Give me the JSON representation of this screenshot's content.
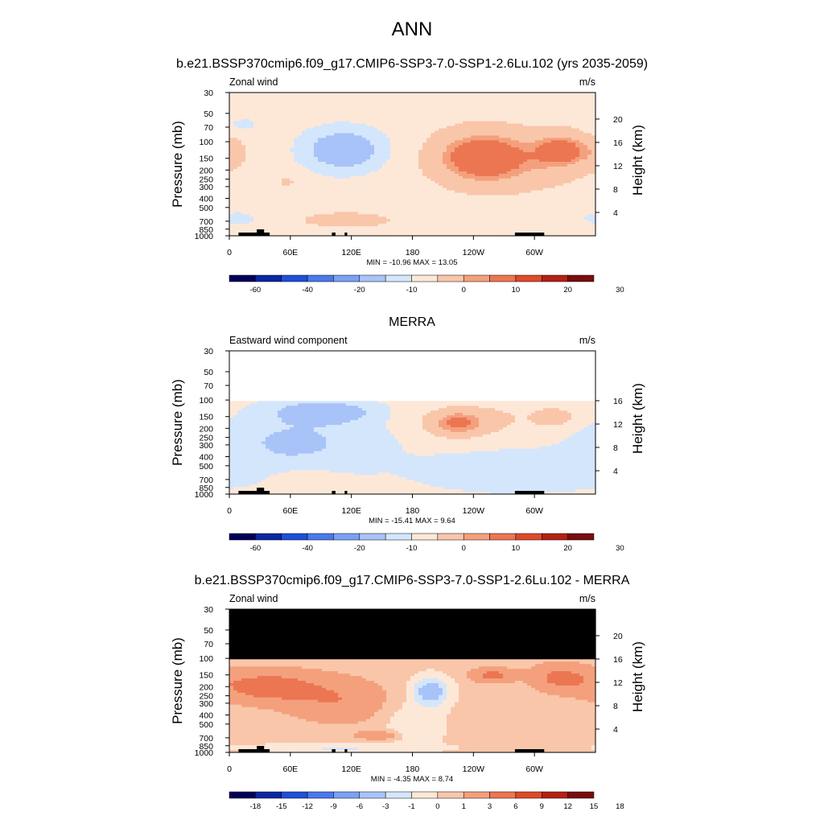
{
  "main_title": "ANN",
  "colors": {
    "full": [
      "#00005a",
      "#0a27a3",
      "#1f4fd8",
      "#4a79ec",
      "#7aa1f3",
      "#a8c3f8",
      "#d4e6fb",
      "#fde8d8",
      "#f9c6aa",
      "#f4a07d",
      "#ec7652",
      "#de4a2a",
      "#b42114",
      "#7a0d0d"
    ],
    "blank": "#ffffff",
    "masked": "#000000",
    "terrain": "#000000"
  },
  "chart_data": [
    {
      "type": "heatmap",
      "title": "b.e21.BSSP370cmip6.f09_g17.CMIP6-SSP3-7.0-SSP1-2.6Lu.102 (yrs 2035-2059)",
      "left_label": "Zonal wind",
      "right_label": "m/s",
      "ylabel": "Pressure (mb)",
      "ylabel_right": "Height (km)",
      "pressure_ticks": [
        "30",
        "50",
        "70",
        "100",
        "150",
        "200",
        "250",
        "300",
        "400",
        "500",
        "700",
        "850",
        "1000"
      ],
      "height_ticks": [
        "4",
        "8",
        "12",
        "16",
        "20"
      ],
      "lon_ticks": [
        "0",
        "60E",
        "120E",
        "180",
        "120W",
        "60W"
      ],
      "minmax": "MIN = -10.96  MAX =  13.05",
      "colorbar_labels": [
        "-60",
        "-40",
        "-20",
        "-10",
        "0",
        "10",
        "20",
        "30"
      ],
      "field": "model"
    },
    {
      "type": "heatmap",
      "title": "MERRA",
      "left_label": "Eastward wind component",
      "right_label": "m/s",
      "ylabel": "Pressure (mb)",
      "ylabel_right": "Height (km)",
      "pressure_ticks": [
        "30",
        "50",
        "70",
        "100",
        "150",
        "200",
        "250",
        "300",
        "400",
        "500",
        "700",
        "850",
        "1000"
      ],
      "height_ticks": [
        "4",
        "8",
        "12",
        "16"
      ],
      "lon_ticks": [
        "0",
        "60E",
        "120E",
        "180",
        "120W",
        "60W"
      ],
      "minmax": "MIN = -15.41  MAX =   9.64",
      "colorbar_labels": [
        "-60",
        "-40",
        "-20",
        "-10",
        "0",
        "10",
        "20",
        "30"
      ],
      "field": "obs"
    },
    {
      "type": "heatmap",
      "title": "b.e21.BSSP370cmip6.f09_g17.CMIP6-SSP3-7.0-SSP1-2.6Lu.102 - MERRA",
      "left_label": "Zonal wind",
      "right_label": "m/s",
      "ylabel": "Pressure (mb)",
      "ylabel_right": "Height (km)",
      "pressure_ticks": [
        "30",
        "50",
        "70",
        "100",
        "150",
        "200",
        "250",
        "300",
        "400",
        "500",
        "700",
        "850",
        "1000"
      ],
      "height_ticks": [
        "4",
        "8",
        "12",
        "16",
        "20"
      ],
      "lon_ticks": [
        "0",
        "60E",
        "120E",
        "180",
        "120W",
        "60W"
      ],
      "minmax": "MIN =  -4.35  MAX =   8.74",
      "colorbar_labels": [
        "-18",
        "-15",
        "-12",
        "-9",
        "-6",
        "-3",
        "-1",
        "0",
        "1",
        "3",
        "6",
        "9",
        "12",
        "15",
        "18"
      ],
      "field": "diff"
    }
  ]
}
